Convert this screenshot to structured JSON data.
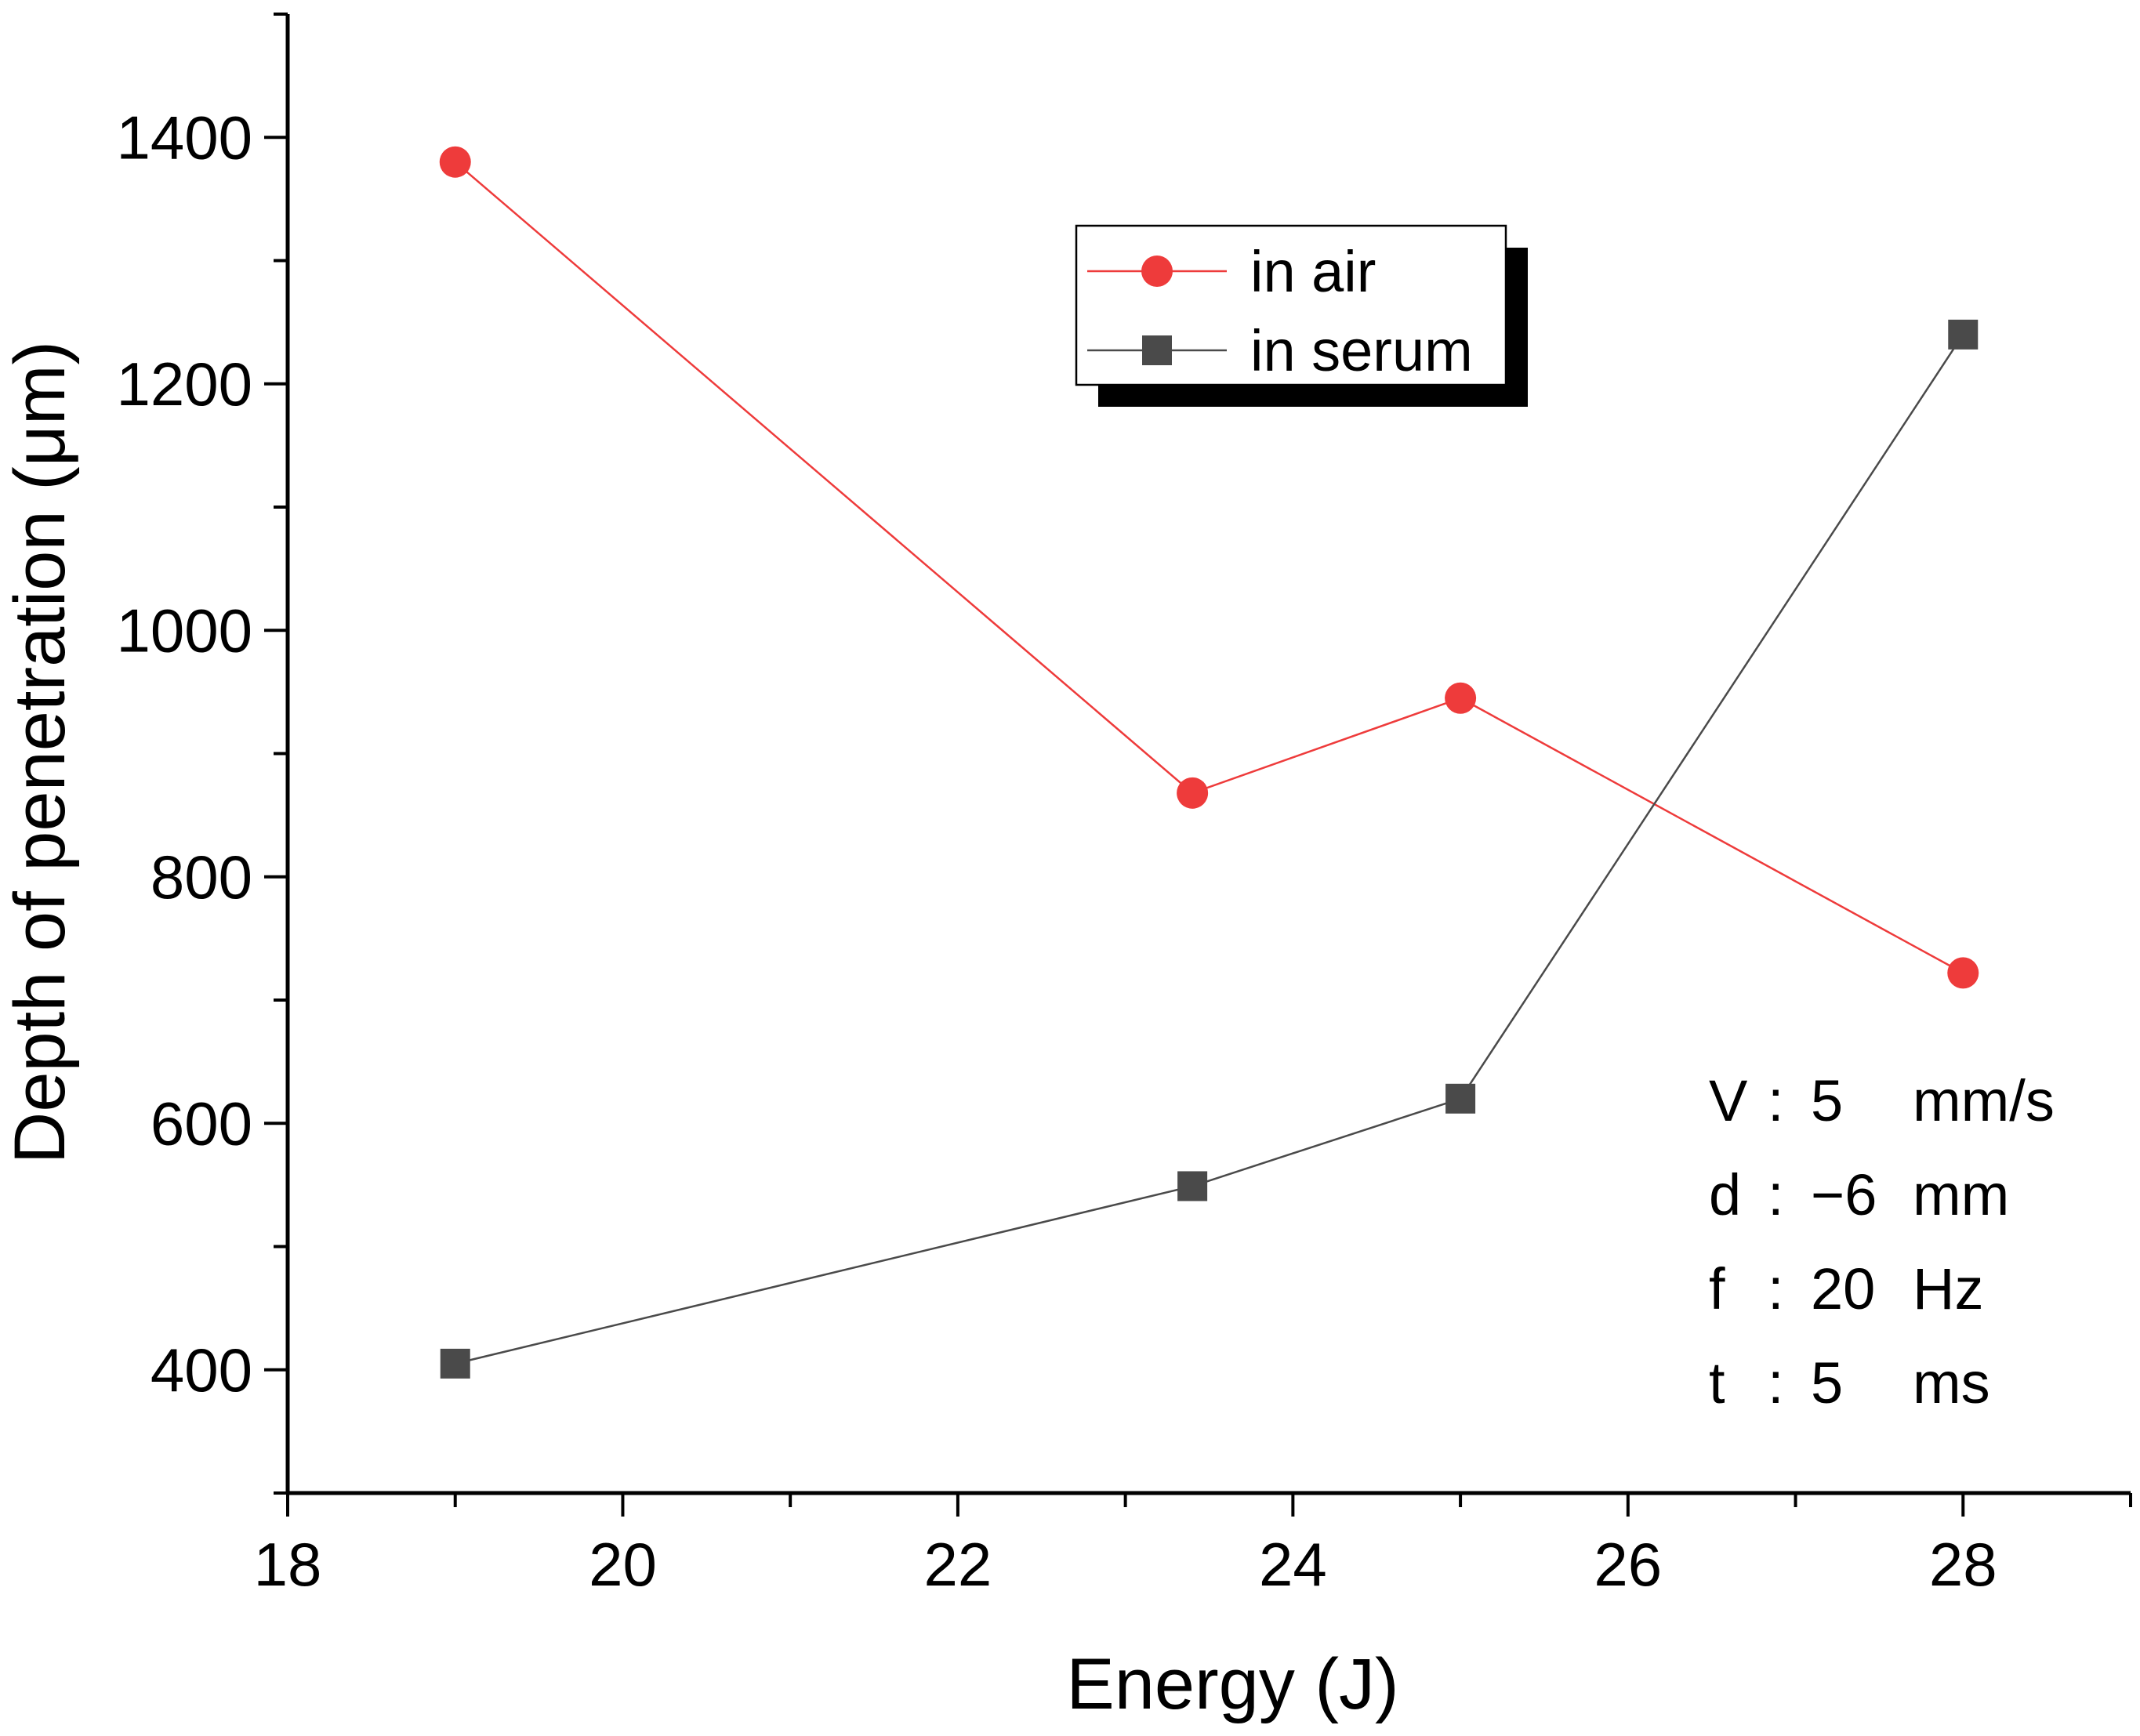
{
  "chart_data": {
    "type": "line",
    "title": "",
    "xlabel": "Energy (J)",
    "ylabel": "Depth of penetration (μm)",
    "xlim": [
      18,
      29
    ],
    "ylim": [
      300,
      1500
    ],
    "xticks": [
      18,
      20,
      22,
      24,
      26,
      28
    ],
    "yticks": [
      400,
      600,
      800,
      1000,
      1200,
      1400
    ],
    "grid": false,
    "legend_position": "top-center",
    "series": [
      {
        "name": "in air",
        "color": "#ee3b3b",
        "marker": "circle",
        "x": [
          19,
          23.4,
          25,
          28
        ],
        "y": [
          1380,
          868,
          945,
          722
        ]
      },
      {
        "name": "in serum",
        "color": "#4a4a4a",
        "marker": "square",
        "x": [
          19,
          23.4,
          25,
          28
        ],
        "y": [
          405,
          549,
          620,
          1240
        ]
      }
    ],
    "annotations": [
      {
        "label": "V",
        "sep": ":",
        "value": "5",
        "unit": "mm/s"
      },
      {
        "label": "d",
        "sep": ":",
        "value": "−6",
        "unit": "mm"
      },
      {
        "label": "f",
        "sep": ":",
        "value": "20",
        "unit": "Hz"
      },
      {
        "label": "t",
        "sep": ":",
        "value": "5",
        "unit": "ms"
      }
    ]
  }
}
